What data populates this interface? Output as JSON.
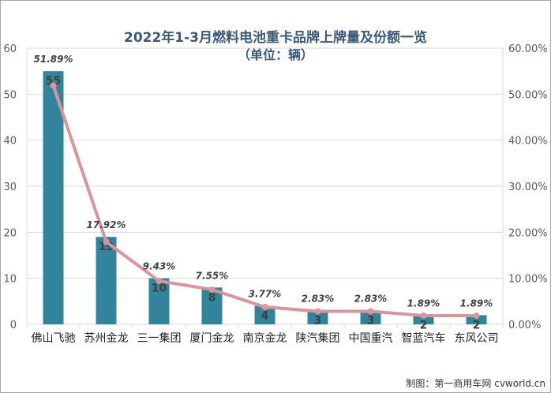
{
  "chart_data": {
    "type": "bar",
    "title": "2022年1-3月燃料电池重卡品牌上牌量及份额一览",
    "subtitle": "（单位：辆）",
    "categories": [
      "佛山飞驰",
      "苏州金龙",
      "三一集团",
      "厦门金龙",
      "南京金龙",
      "陕汽集团",
      "中国重汽",
      "智蓝汽车",
      "东风公司"
    ],
    "series": [
      {
        "type": "bar",
        "axis": "left",
        "values": [
          55,
          19,
          10,
          8,
          4,
          3,
          3,
          2,
          2
        ]
      },
      {
        "type": "line",
        "axis": "right",
        "values": [
          51.89,
          17.92,
          9.43,
          7.55,
          3.77,
          2.83,
          2.83,
          1.89,
          1.89
        ]
      }
    ],
    "value_labels": [
      "55",
      "19",
      "10",
      "8",
      "4",
      "3",
      "3",
      "2",
      "2"
    ],
    "percent_labels": [
      "51.89%",
      "17.92%",
      "9.43%",
      "7.55%",
      "3.77%",
      "2.83%",
      "2.83%",
      "1.89%",
      "1.89%"
    ],
    "y_left": {
      "min": 0,
      "max": 60,
      "ticks": [
        "0",
        "10",
        "20",
        "30",
        "40",
        "50",
        "60"
      ]
    },
    "y_right": {
      "min": 0,
      "max": 60,
      "ticks": [
        "0.00%",
        "10.00%",
        "20.00%",
        "30.00%",
        "40.00%",
        "50.00%",
        "60.00%"
      ]
    },
    "grid": true,
    "legend": "none",
    "colors": {
      "bar": "#31849b",
      "line": "#d9969a",
      "marker": "#d9969a",
      "grid": "#d9d9d9",
      "title": "#3a5a78"
    }
  },
  "source": "制图：第一商用车网 cvworld.cn"
}
